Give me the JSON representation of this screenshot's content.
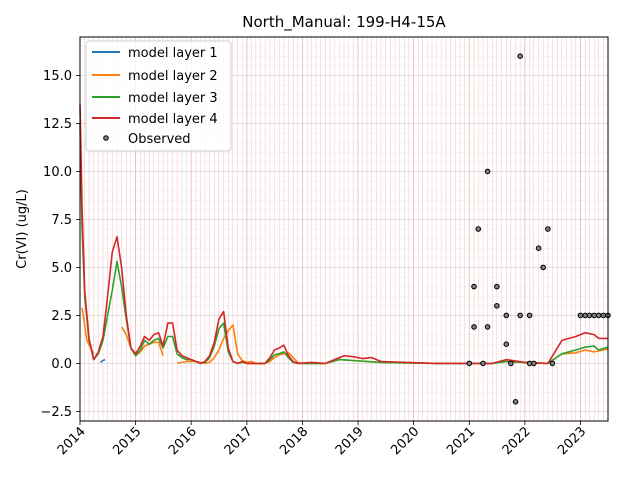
{
  "chart_data": {
    "type": "line",
    "title": "North_Manual: 199-H4-15A",
    "xlabel": "",
    "ylabel": "Cr(VI) (ug/L)",
    "xlim": [
      "2014-01-01",
      "2023-07-01"
    ],
    "ylim": [
      -3.0,
      17.0
    ],
    "x_ticks": [
      {
        "date": "2014-01-01",
        "label": "2014"
      },
      {
        "date": "2015-01-01",
        "label": "2015"
      },
      {
        "date": "2016-01-01",
        "label": "2016"
      },
      {
        "date": "2017-01-01",
        "label": "2017"
      },
      {
        "date": "2018-01-01",
        "label": "2018"
      },
      {
        "date": "2019-01-01",
        "label": "2019"
      },
      {
        "date": "2020-01-01",
        "label": "2020"
      },
      {
        "date": "2021-01-01",
        "label": "2021"
      },
      {
        "date": "2022-01-01",
        "label": "2022"
      },
      {
        "date": "2023-01-01",
        "label": "2023"
      }
    ],
    "y_ticks": [
      {
        "value": -2.5,
        "label": "−2.5"
      },
      {
        "value": 0.0,
        "label": "0.0"
      },
      {
        "value": 2.5,
        "label": "2.5"
      },
      {
        "value": 5.0,
        "label": "5.0"
      },
      {
        "value": 7.5,
        "label": "7.5"
      },
      {
        "value": 10.0,
        "label": "10.0"
      },
      {
        "value": 12.5,
        "label": "12.5"
      },
      {
        "value": 15.0,
        "label": "15.0"
      }
    ],
    "grid": true,
    "legend_position": "upper-left",
    "series": [
      {
        "name": "model layer 1",
        "color": "#1f77b4",
        "points": [
          [
            "2014-05-15",
            0.05
          ],
          [
            "2014-06-01",
            0.15
          ],
          [
            "2014-06-15",
            0.2
          ]
        ]
      },
      {
        "name": "model layer 2",
        "color": "#ff7f0e",
        "points": [
          [
            "2014-01-15",
            2.9
          ],
          [
            "2014-02-15",
            1.2
          ],
          [
            "2014-04-01",
            0.5
          ],
          null,
          [
            "2014-10-01",
            1.9
          ],
          [
            "2014-11-01",
            1.5
          ],
          [
            "2014-12-01",
            0.8
          ],
          [
            "2015-01-01",
            0.4
          ],
          [
            "2015-02-01",
            0.6
          ],
          [
            "2015-03-01",
            0.9
          ],
          [
            "2015-04-01",
            1.0
          ],
          [
            "2015-05-01",
            1.1
          ],
          [
            "2015-06-01",
            1.1
          ],
          [
            "2015-07-01",
            0.4
          ],
          null,
          [
            "2015-10-01",
            0.0
          ],
          [
            "2015-11-01",
            0.05
          ],
          [
            "2015-12-01",
            0.1
          ],
          [
            "2016-01-01",
            0.1
          ],
          [
            "2016-02-01",
            0.1
          ],
          [
            "2016-03-01",
            0.05
          ],
          [
            "2016-04-01",
            0.0
          ],
          [
            "2016-05-01",
            0.05
          ],
          [
            "2016-06-01",
            0.3
          ],
          [
            "2016-07-01",
            0.7
          ],
          [
            "2016-08-01",
            1.3
          ],
          [
            "2016-09-01",
            1.7
          ],
          [
            "2016-10-01",
            2.0
          ],
          [
            "2016-11-01",
            0.5
          ],
          [
            "2016-12-01",
            0.15
          ],
          [
            "2017-01-01",
            0.05
          ],
          [
            "2017-02-01",
            0.1
          ],
          [
            "2017-03-01",
            0.0
          ],
          [
            "2017-05-01",
            0.0
          ],
          [
            "2017-06-01",
            0.1
          ],
          [
            "2017-07-01",
            0.3
          ],
          [
            "2017-08-01",
            0.45
          ],
          [
            "2017-09-01",
            0.5
          ],
          [
            "2017-10-01",
            0.55
          ],
          [
            "2017-11-01",
            0.3
          ],
          [
            "2017-12-01",
            0.05
          ],
          [
            "2018-01-01",
            0.0
          ],
          [
            "2018-06-01",
            0.0
          ],
          [
            "2018-09-01",
            0.2
          ],
          [
            "2018-12-01",
            0.15
          ],
          [
            "2019-03-01",
            0.1
          ],
          [
            "2019-06-01",
            0.05
          ],
          [
            "2020-06-01",
            0.0
          ],
          [
            "2021-06-01",
            0.0
          ],
          [
            "2021-09-01",
            0.1
          ],
          [
            "2022-01-01",
            0.05
          ],
          [
            "2022-06-01",
            0.0
          ],
          [
            "2022-09-01",
            0.5
          ],
          [
            "2022-12-01",
            0.55
          ],
          [
            "2023-02-01",
            0.7
          ],
          [
            "2023-04-01",
            0.6
          ],
          [
            "2023-07-01",
            0.75
          ]
        ]
      },
      {
        "name": "model layer 3",
        "color": "#2ca02c",
        "points": [
          [
            "2014-01-01",
            12.5
          ],
          [
            "2014-01-15",
            7.0
          ],
          [
            "2014-02-01",
            3.5
          ],
          [
            "2014-03-01",
            1.2
          ],
          [
            "2014-04-01",
            0.2
          ],
          [
            "2014-05-01",
            0.5
          ],
          [
            "2014-06-01",
            1.2
          ],
          [
            "2014-07-01",
            2.5
          ],
          [
            "2014-08-01",
            3.8
          ],
          [
            "2014-09-01",
            5.3
          ],
          [
            "2014-10-01",
            4.0
          ],
          [
            "2014-11-01",
            2.3
          ],
          [
            "2014-12-01",
            0.8
          ],
          [
            "2015-01-01",
            0.4
          ],
          [
            "2015-02-01",
            0.7
          ],
          [
            "2015-03-01",
            1.2
          ],
          [
            "2015-04-01",
            1.0
          ],
          [
            "2015-05-01",
            1.2
          ],
          [
            "2015-06-01",
            1.3
          ],
          [
            "2015-07-01",
            0.8
          ],
          [
            "2015-08-01",
            1.4
          ],
          [
            "2015-09-01",
            1.4
          ],
          [
            "2015-10-01",
            0.5
          ],
          [
            "2015-11-01",
            0.3
          ],
          [
            "2015-12-01",
            0.2
          ],
          [
            "2016-01-01",
            0.2
          ],
          [
            "2016-02-01",
            0.1
          ],
          [
            "2016-03-01",
            0.0
          ],
          [
            "2016-04-01",
            0.05
          ],
          [
            "2016-05-01",
            0.3
          ],
          [
            "2016-06-01",
            0.9
          ],
          [
            "2016-07-01",
            1.8
          ],
          [
            "2016-08-01",
            2.1
          ],
          [
            "2016-09-01",
            0.6
          ],
          [
            "2016-10-01",
            0.1
          ],
          [
            "2016-11-01",
            0.0
          ],
          [
            "2016-12-01",
            0.05
          ],
          [
            "2017-01-01",
            0.0
          ],
          [
            "2017-05-01",
            0.0
          ],
          [
            "2017-06-01",
            0.2
          ],
          [
            "2017-07-01",
            0.45
          ],
          [
            "2017-08-01",
            0.5
          ],
          [
            "2017-09-01",
            0.6
          ],
          [
            "2017-10-01",
            0.3
          ],
          [
            "2017-11-01",
            0.05
          ],
          [
            "2017-12-01",
            0.0
          ],
          [
            "2018-06-01",
            0.0
          ],
          [
            "2018-09-01",
            0.2
          ],
          [
            "2018-12-01",
            0.15
          ],
          [
            "2019-03-01",
            0.1
          ],
          [
            "2019-06-01",
            0.05
          ],
          [
            "2020-06-01",
            0.0
          ],
          [
            "2021-06-01",
            0.0
          ],
          [
            "2021-09-01",
            0.1
          ],
          [
            "2022-01-01",
            0.05
          ],
          [
            "2022-06-01",
            0.0
          ],
          [
            "2022-09-01",
            0.5
          ],
          [
            "2022-12-01",
            0.7
          ],
          [
            "2023-02-01",
            0.85
          ],
          [
            "2023-04-01",
            0.9
          ],
          [
            "2023-05-01",
            0.7
          ],
          [
            "2023-07-01",
            0.85
          ]
        ]
      },
      {
        "name": "model layer 4",
        "color": "#d62728",
        "points": [
          [
            "2014-01-01",
            13.5
          ],
          [
            "2014-01-15",
            8.0
          ],
          [
            "2014-02-01",
            3.8
          ],
          [
            "2014-03-01",
            1.3
          ],
          [
            "2014-04-01",
            0.2
          ],
          [
            "2014-05-01",
            0.6
          ],
          [
            "2014-06-01",
            1.4
          ],
          [
            "2014-07-01",
            3.5
          ],
          [
            "2014-08-01",
            5.8
          ],
          [
            "2014-09-01",
            6.6
          ],
          [
            "2014-10-01",
            5.0
          ],
          [
            "2014-11-01",
            2.5
          ],
          [
            "2014-12-01",
            0.8
          ],
          [
            "2015-01-01",
            0.5
          ],
          [
            "2015-02-01",
            0.9
          ],
          [
            "2015-03-01",
            1.4
          ],
          [
            "2015-04-01",
            1.2
          ],
          [
            "2015-05-01",
            1.5
          ],
          [
            "2015-06-01",
            1.6
          ],
          [
            "2015-07-01",
            0.9
          ],
          [
            "2015-08-01",
            2.1
          ],
          [
            "2015-09-01",
            2.1
          ],
          [
            "2015-10-01",
            0.7
          ],
          [
            "2015-11-01",
            0.4
          ],
          [
            "2015-12-01",
            0.3
          ],
          [
            "2016-01-01",
            0.2
          ],
          [
            "2016-02-01",
            0.1
          ],
          [
            "2016-03-01",
            0.0
          ],
          [
            "2016-04-01",
            0.1
          ],
          [
            "2016-05-01",
            0.4
          ],
          [
            "2016-06-01",
            1.1
          ],
          [
            "2016-07-01",
            2.3
          ],
          [
            "2016-08-01",
            2.7
          ],
          [
            "2016-09-01",
            0.8
          ],
          [
            "2016-10-01",
            0.1
          ],
          [
            "2016-11-01",
            0.0
          ],
          [
            "2016-12-01",
            0.1
          ],
          [
            "2017-01-01",
            0.0
          ],
          [
            "2017-05-01",
            0.0
          ],
          [
            "2017-06-01",
            0.3
          ],
          [
            "2017-07-01",
            0.7
          ],
          [
            "2017-08-01",
            0.8
          ],
          [
            "2017-09-01",
            0.95
          ],
          [
            "2017-10-01",
            0.4
          ],
          [
            "2017-11-01",
            0.1
          ],
          [
            "2017-12-01",
            0.0
          ],
          [
            "2018-03-01",
            0.05
          ],
          [
            "2018-06-01",
            0.0
          ],
          [
            "2018-09-01",
            0.3
          ],
          [
            "2018-10-01",
            0.4
          ],
          [
            "2018-12-01",
            0.35
          ],
          [
            "2019-02-01",
            0.25
          ],
          [
            "2019-04-01",
            0.3
          ],
          [
            "2019-06-01",
            0.1
          ],
          [
            "2020-06-01",
            0.0
          ],
          [
            "2021-06-01",
            0.0
          ],
          [
            "2021-09-01",
            0.2
          ],
          [
            "2022-01-01",
            0.05
          ],
          [
            "2022-06-01",
            0.0
          ],
          [
            "2022-09-01",
            1.2
          ],
          [
            "2022-12-01",
            1.4
          ],
          [
            "2023-02-01",
            1.6
          ],
          [
            "2023-04-01",
            1.5
          ],
          [
            "2023-05-01",
            1.3
          ],
          [
            "2023-07-01",
            1.3
          ]
        ]
      }
    ],
    "observed": {
      "name": "Observed",
      "points": [
        [
          "2021-01-01",
          0.0
        ],
        [
          "2021-02-01",
          4.0
        ],
        [
          "2021-02-01",
          1.9
        ],
        [
          "2021-03-01",
          7.0
        ],
        [
          "2021-04-01",
          0.0
        ],
        [
          "2021-05-01",
          10.0
        ],
        [
          "2021-05-01",
          1.9
        ],
        [
          "2021-07-01",
          4.0
        ],
        [
          "2021-07-01",
          3.0
        ],
        [
          "2021-09-01",
          2.5
        ],
        [
          "2021-09-01",
          1.0
        ],
        [
          "2021-10-01",
          0.0
        ],
        [
          "2021-11-01",
          -2.0
        ],
        [
          "2021-12-01",
          16.0
        ],
        [
          "2021-12-01",
          2.5
        ],
        [
          "2022-02-01",
          2.5
        ],
        [
          "2022-02-01",
          0.0
        ],
        [
          "2022-03-01",
          0.0
        ],
        [
          "2022-04-01",
          6.0
        ],
        [
          "2022-05-01",
          5.0
        ],
        [
          "2022-06-01",
          7.0
        ],
        [
          "2022-07-01",
          0.0
        ],
        [
          "2023-01-01",
          2.5
        ],
        [
          "2023-02-01",
          2.5
        ],
        [
          "2023-03-01",
          2.5
        ],
        [
          "2023-04-01",
          2.5
        ],
        [
          "2023-05-01",
          2.5
        ],
        [
          "2023-06-01",
          2.5
        ],
        [
          "2023-07-01",
          2.5
        ]
      ]
    }
  }
}
